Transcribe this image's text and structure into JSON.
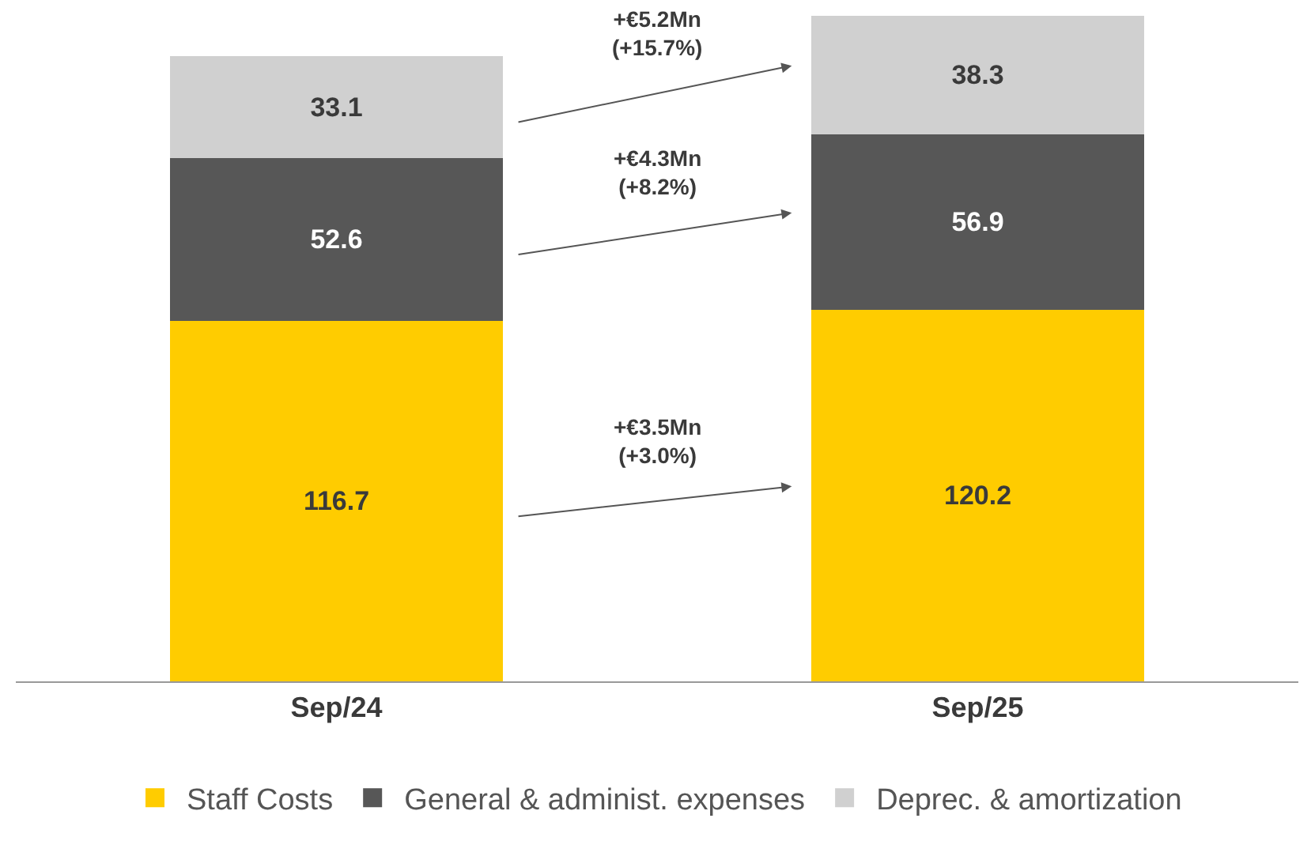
{
  "chart_data": {
    "type": "bar",
    "stacked": true,
    "data_labels": true,
    "legend": "bottom",
    "categories": [
      "Sep/24",
      "Sep/25"
    ],
    "series": [
      {
        "name": "Staff Costs",
        "color": "#ffcc00",
        "values": [
          116.7,
          120.2
        ]
      },
      {
        "name": "General & administ. expenses",
        "color": "#575757",
        "values": [
          52.6,
          56.9
        ]
      },
      {
        "name": "Deprec. & amortization",
        "color": "#d0d0d0",
        "values": [
          33.1,
          38.3
        ]
      }
    ],
    "annotations": [
      "+€3.5Mn\n(+3.0%)",
      "+€4.3Mn\n(+8.2%)",
      "+€5.2Mn\n(+15.7%)"
    ]
  }
}
